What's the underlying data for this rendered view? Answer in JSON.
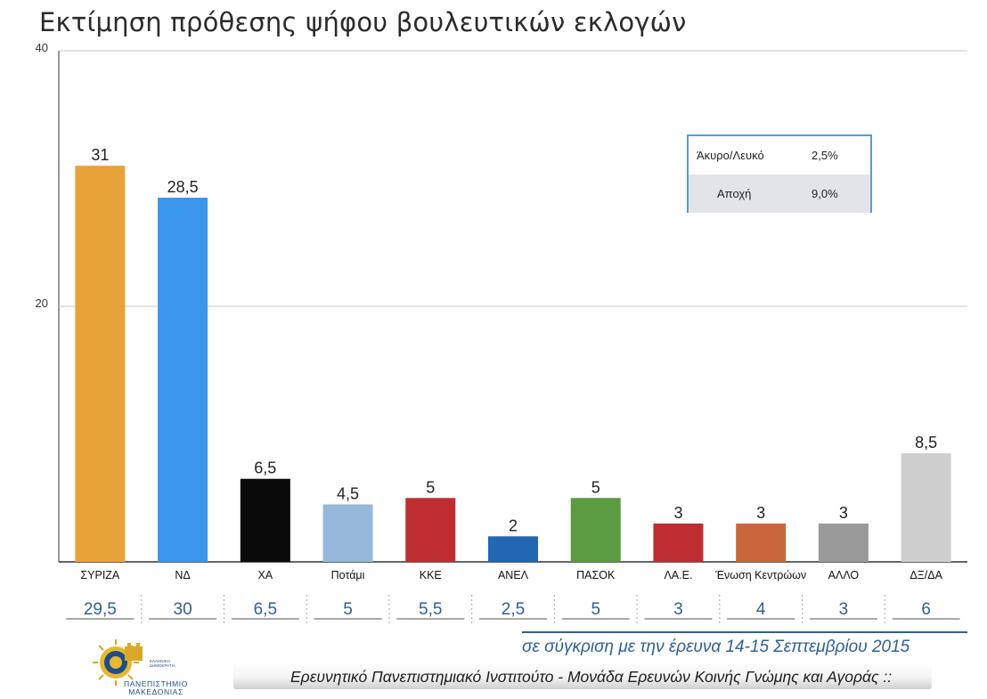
{
  "title": "Εκτίμηση πρόθεσης ψήφου βουλευτικών εκλογών",
  "chart_data": {
    "type": "bar",
    "title": "Εκτίμηση πρόθεσης ψήφου βουλευτικών εκλογών",
    "categories": [
      "ΣΥΡΙΖΑ",
      "ΝΔ",
      "ΧΑ",
      "Ποτάμι",
      "ΚΚΕ",
      "ΑΝΕΛ",
      "ΠΑΣΟΚ",
      "ΛΑ.Ε.",
      "Ένωση Κεντρώων",
      "ΑΛΛΟ",
      "ΔΞ/ΔΑ"
    ],
    "values": [
      31,
      28.5,
      6.5,
      4.5,
      5,
      2,
      5,
      3,
      3,
      3,
      8.5
    ],
    "value_labels": [
      "31",
      "28,5",
      "6,5",
      "4,5",
      "5",
      "2",
      "5",
      "3",
      "3",
      "3",
      "8,5"
    ],
    "colors": [
      "#e8a23a",
      "#3a96ea",
      "#0a0a0a",
      "#97b8db",
      "#be2e31",
      "#2366b2",
      "#5b9b42",
      "#be2e31",
      "#c8673e",
      "#9a9a9a",
      "#cfcfcf"
    ],
    "previous_values": [
      "29,5",
      "30",
      "6,5",
      "5",
      "5,5",
      "2,5",
      "5",
      "3",
      "4",
      "3",
      "6"
    ],
    "ylim": [
      0,
      40
    ],
    "yticks": [
      20,
      40
    ],
    "ytick_labels": [
      "20",
      "40"
    ],
    "xlabel": "",
    "ylabel": "",
    "grid": true
  },
  "legend_table": [
    {
      "name": "Άκυρο/Λευκό",
      "value": "2,5%"
    },
    {
      "name": "Αποχή",
      "value": "9,0%"
    }
  ],
  "comparison_note": "σε σύγκριση με την έρευνα 14-15 Σεπτεμβρίου 2015",
  "footer": "Ερευνητικό Πανεπιστημιακό Ινστιτούτο - Μονάδα Ερευνών Κοινής Γνώμης και Αγοράς ::",
  "logo": {
    "name": "ΠΑΝΕΠΙΣΤΗΜΙΟ ΜΑΚΕΔΟΝΙΑΣ",
    "seal_text": "ΕΛΛΗΝΙΚΗ ΔΗΜΟΚΡΑΤΙΑ"
  }
}
